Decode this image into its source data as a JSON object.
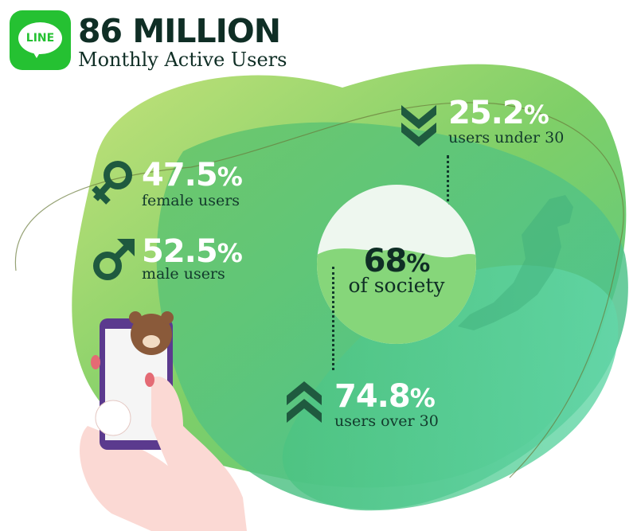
{
  "logo": {
    "text": "LINE",
    "color": "#25c132"
  },
  "header": {
    "title": "86 MILLION",
    "subtitle": "Monthly Active Users"
  },
  "stats": {
    "under30": {
      "value": "25.2",
      "unit": "%",
      "label": "users under 30",
      "icon": "double-chevron-down-icon"
    },
    "female": {
      "value": "47.5",
      "unit": "%",
      "label": "female users",
      "icon": "female-symbol-icon"
    },
    "male": {
      "value": "52.5",
      "unit": "%",
      "label": "male users",
      "icon": "male-symbol-icon"
    },
    "society": {
      "value": "68",
      "unit": "%",
      "label": "of society",
      "fill_percent": 68
    },
    "over30": {
      "value": "74.8",
      "unit": "%",
      "label": "users over 30",
      "icon": "double-chevron-up-icon"
    }
  },
  "colors": {
    "dark": "#0f2e25",
    "icon_dark": "#1f5a3f",
    "green_light": "#b6dc6a",
    "green_mid": "#5cc36e",
    "teal": "#4fcf9a"
  }
}
